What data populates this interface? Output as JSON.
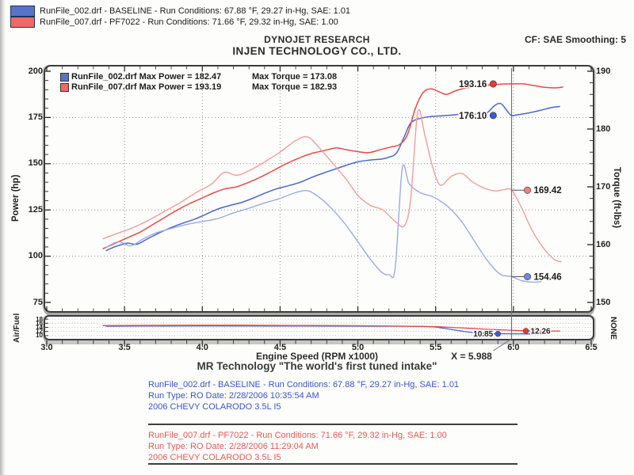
{
  "header": {
    "legend": [
      {
        "label": "RunFile_002.drf - BASELINE  -  Run Conditions: 67.88 °F, 29.27 in-Hg, SAE: 1.01",
        "color": "#5874c9"
      },
      {
        "label": "RunFile_007.drf - PF7022  -  Run Conditions: 71.66 °F, 29.32 in-Hg, SAE: 1.00",
        "color": "#ef6a66"
      }
    ],
    "company_line1": "DYNOJET RESEARCH",
    "company_line2": "INJEN TECHNOLOGY CO., LTD.",
    "cf_label": "CF: SAE  Smoothing: 5"
  },
  "chart_data": {
    "type": "line",
    "x_axis": {
      "label": "Engine Speed (RPM x1000)",
      "min": 3.0,
      "max": 6.5,
      "major_step": 0.5,
      "minor_step": 0.1,
      "ticks": [
        "3.0",
        "3.5",
        "4.0",
        "4.5",
        "5.0",
        "5.5",
        "6.0",
        "6.5"
      ]
    },
    "y_left": {
      "label": "Power (hp)",
      "min": 75,
      "max": 200,
      "major_step": 25,
      "minor_step": 5,
      "ticks": [
        "200",
        "175",
        "150",
        "125",
        "100",
        "75"
      ]
    },
    "y_right": {
      "label": "Torque (ft-lbs)",
      "min": 150,
      "max": 190,
      "major_step": 10,
      "minor_step": 2,
      "ticks": [
        "190",
        "180",
        "170",
        "160",
        "150"
      ]
    },
    "af_axis": {
      "label": "Air/Fuel",
      "right_label": "NONE",
      "min": 9.2,
      "max": 19.2,
      "ticks": [
        "18",
        "16",
        "14",
        "12",
        "10"
      ]
    },
    "grid": {
      "h_lines_power": [
        175,
        150,
        125,
        100
      ],
      "v_lines_rpm": [
        3.5,
        4.0,
        4.5,
        5.0,
        5.5,
        6.0
      ]
    },
    "cursor_x": 5.988,
    "cursor_label": "X = 5.988",
    "inner_legend": [
      {
        "file_power": "RunFile_002.drf Max Power = 182.47",
        "torque": "Max Torque = 173.08",
        "color": "#5874c9"
      },
      {
        "file_power": "RunFile_007.drf Max Power = 193.19",
        "torque": "Max Torque = 182.93",
        "color": "#ef6a66"
      }
    ],
    "series": [
      {
        "name": "power_002",
        "axis": "left",
        "color": "#4a66cc",
        "width": 1.5,
        "points": [
          [
            3.38,
            103
          ],
          [
            3.45,
            105.5
          ],
          [
            3.52,
            107
          ],
          [
            3.58,
            106.5
          ],
          [
            3.65,
            109.5
          ],
          [
            3.72,
            112.5
          ],
          [
            3.8,
            115.5
          ],
          [
            3.88,
            118
          ],
          [
            3.95,
            120
          ],
          [
            4.02,
            122.5
          ],
          [
            4.1,
            125.5
          ],
          [
            4.18,
            127.5
          ],
          [
            4.25,
            129
          ],
          [
            4.33,
            131.5
          ],
          [
            4.4,
            134
          ],
          [
            4.48,
            136.5
          ],
          [
            4.55,
            138
          ],
          [
            4.63,
            140
          ],
          [
            4.7,
            142.5
          ],
          [
            4.78,
            145
          ],
          [
            4.85,
            147
          ],
          [
            4.92,
            149
          ],
          [
            5.0,
            151
          ],
          [
            5.08,
            152
          ],
          [
            5.15,
            152.5
          ],
          [
            5.2,
            153.5
          ],
          [
            5.25,
            156
          ],
          [
            5.3,
            165
          ],
          [
            5.34,
            172
          ],
          [
            5.4,
            174.5
          ],
          [
            5.47,
            175.5
          ],
          [
            5.55,
            176
          ],
          [
            5.63,
            176.5
          ],
          [
            5.7,
            177.5
          ],
          [
            5.78,
            176.5
          ],
          [
            5.83,
            177.5
          ],
          [
            5.88,
            181.5
          ],
          [
            5.92,
            182.47
          ],
          [
            5.96,
            178.5
          ],
          [
            5.988,
            176.1
          ],
          [
            6.03,
            176.5
          ],
          [
            6.1,
            177.5
          ],
          [
            6.18,
            179
          ],
          [
            6.25,
            180.5
          ],
          [
            6.3,
            181
          ]
        ]
      },
      {
        "name": "power_007",
        "axis": "left",
        "color": "#e64a45",
        "width": 1.5,
        "points": [
          [
            3.36,
            104
          ],
          [
            3.44,
            107
          ],
          [
            3.52,
            110
          ],
          [
            3.6,
            113
          ],
          [
            3.68,
            117
          ],
          [
            3.76,
            121
          ],
          [
            3.84,
            125
          ],
          [
            3.92,
            128.5
          ],
          [
            4.0,
            131.5
          ],
          [
            4.08,
            134.5
          ],
          [
            4.15,
            136.5
          ],
          [
            4.22,
            137.5
          ],
          [
            4.3,
            140
          ],
          [
            4.38,
            143
          ],
          [
            4.46,
            146.5
          ],
          [
            4.54,
            150
          ],
          [
            4.62,
            153
          ],
          [
            4.7,
            155.5
          ],
          [
            4.78,
            157
          ],
          [
            4.86,
            158.5
          ],
          [
            4.93,
            157.5
          ],
          [
            5.0,
            156.5
          ],
          [
            5.07,
            156
          ],
          [
            5.14,
            157.5
          ],
          [
            5.21,
            159
          ],
          [
            5.27,
            160.5
          ],
          [
            5.32,
            166
          ],
          [
            5.37,
            180
          ],
          [
            5.42,
            188.5
          ],
          [
            5.47,
            190.5
          ],
          [
            5.52,
            189
          ],
          [
            5.57,
            187.5
          ],
          [
            5.63,
            189.5
          ],
          [
            5.7,
            191
          ],
          [
            5.78,
            192
          ],
          [
            5.86,
            192.7
          ],
          [
            5.94,
            193.1
          ],
          [
            5.988,
            193.16
          ],
          [
            6.06,
            193.19
          ],
          [
            6.13,
            192.3
          ],
          [
            6.2,
            191.3
          ],
          [
            6.27,
            191
          ],
          [
            6.32,
            191.5
          ]
        ]
      },
      {
        "name": "torque_002",
        "axis": "right",
        "color": "#9aabe4",
        "width": 1.4,
        "points": [
          [
            3.38,
            159.5
          ],
          [
            3.46,
            160.5
          ],
          [
            3.54,
            159.8
          ],
          [
            3.62,
            161
          ],
          [
            3.7,
            162
          ],
          [
            3.8,
            162.8
          ],
          [
            3.9,
            163.5
          ],
          [
            4.0,
            164
          ],
          [
            4.1,
            164.5
          ],
          [
            4.2,
            165.5
          ],
          [
            4.3,
            166.3
          ],
          [
            4.4,
            167.2
          ],
          [
            4.5,
            168
          ],
          [
            4.6,
            169
          ],
          [
            4.68,
            169.3
          ],
          [
            4.76,
            168
          ],
          [
            4.84,
            166
          ],
          [
            4.92,
            163.5
          ],
          [
            5.0,
            160.5
          ],
          [
            5.08,
            157.5
          ],
          [
            5.15,
            155.3
          ],
          [
            5.2,
            154.8
          ],
          [
            5.24,
            156
          ],
          [
            5.285,
            173.08
          ],
          [
            5.33,
            170.5
          ],
          [
            5.4,
            169
          ],
          [
            5.48,
            168.3
          ],
          [
            5.56,
            167
          ],
          [
            5.62,
            165.5
          ],
          [
            5.68,
            163.5
          ],
          [
            5.74,
            161
          ],
          [
            5.8,
            158.5
          ],
          [
            5.86,
            156.3
          ],
          [
            5.92,
            154.8
          ],
          [
            5.988,
            154.46
          ],
          [
            6.05,
            153.8
          ],
          [
            6.12,
            153.5
          ],
          [
            6.18,
            153.6
          ]
        ]
      },
      {
        "name": "torque_007",
        "axis": "right",
        "color": "#f29d99",
        "width": 1.4,
        "points": [
          [
            3.36,
            161
          ],
          [
            3.46,
            162
          ],
          [
            3.56,
            163
          ],
          [
            3.66,
            164.3
          ],
          [
            3.76,
            165.8
          ],
          [
            3.86,
            167.3
          ],
          [
            3.96,
            169
          ],
          [
            4.06,
            170.5
          ],
          [
            4.14,
            172.5
          ],
          [
            4.22,
            172
          ],
          [
            4.3,
            172.8
          ],
          [
            4.4,
            174.3
          ],
          [
            4.5,
            176
          ],
          [
            4.6,
            178
          ],
          [
            4.68,
            178.6
          ],
          [
            4.76,
            176.5
          ],
          [
            4.84,
            174
          ],
          [
            4.92,
            171.5
          ],
          [
            5.0,
            168.5
          ],
          [
            5.08,
            166.8
          ],
          [
            5.16,
            166
          ],
          [
            5.24,
            164
          ],
          [
            5.3,
            163.3
          ],
          [
            5.34,
            168
          ],
          [
            5.385,
            182.93
          ],
          [
            5.43,
            179
          ],
          [
            5.48,
            173.5
          ],
          [
            5.53,
            170.3
          ],
          [
            5.6,
            171.8
          ],
          [
            5.67,
            172.3
          ],
          [
            5.74,
            170.8
          ],
          [
            5.81,
            169.8
          ],
          [
            5.88,
            169.3
          ],
          [
            5.94,
            169.5
          ],
          [
            5.988,
            169.42
          ],
          [
            6.05,
            166.5
          ],
          [
            6.12,
            162.5
          ],
          [
            6.19,
            159.5
          ],
          [
            6.26,
            157.5
          ],
          [
            6.31,
            157
          ]
        ]
      }
    ],
    "af_series": [
      {
        "name": "af_002",
        "color": "#4a66cc",
        "width": 1.3,
        "points": [
          [
            3.38,
            14.55
          ],
          [
            3.7,
            14.65
          ],
          [
            4.1,
            14.7
          ],
          [
            4.5,
            14.65
          ],
          [
            4.9,
            14.6
          ],
          [
            5.2,
            14.55
          ],
          [
            5.45,
            14.4
          ],
          [
            5.55,
            13.6
          ],
          [
            5.65,
            12.4
          ],
          [
            5.75,
            11.4
          ],
          [
            5.85,
            11.0
          ],
          [
            5.95,
            10.9
          ],
          [
            6.05,
            10.85
          ],
          [
            6.15,
            10.8
          ]
        ]
      },
      {
        "name": "af_007",
        "color": "#e64a45",
        "width": 1.3,
        "points": [
          [
            3.36,
            14.85
          ],
          [
            3.8,
            15.0
          ],
          [
            4.2,
            15.05
          ],
          [
            4.6,
            14.95
          ],
          [
            5.0,
            14.8
          ],
          [
            5.3,
            14.6
          ],
          [
            5.5,
            14.3
          ],
          [
            5.65,
            13.8
          ],
          [
            5.8,
            13.2
          ],
          [
            5.95,
            12.7
          ],
          [
            6.05,
            12.4
          ],
          [
            6.15,
            12.26
          ],
          [
            6.3,
            12.2
          ]
        ]
      }
    ],
    "markers": [
      {
        "label": "193.16",
        "rpm": 5.87,
        "value": 193.16,
        "axis": "left",
        "side": "left",
        "color": "#e63a35",
        "leader": false
      },
      {
        "label": "176.10",
        "rpm": 5.87,
        "value": 176.1,
        "axis": "left",
        "side": "left",
        "color": "#3d5bd0",
        "leader": false
      },
      {
        "label": "169.42",
        "rpm": 6.09,
        "value": 169.42,
        "axis": "right",
        "side": "right",
        "color": "#ef807c",
        "leader": true
      },
      {
        "label": "154.46",
        "rpm": 6.09,
        "value": 154.46,
        "axis": "right",
        "side": "right",
        "color": "#6d87dc",
        "leader": true
      }
    ],
    "af_markers": [
      {
        "label": "10.85",
        "rpm": 5.9,
        "value": 10.85,
        "side": "left",
        "color": "#3d5bd0"
      },
      {
        "label": "12.26",
        "rpm": 6.08,
        "value": 12.26,
        "side": "right",
        "color": "#e63a35"
      }
    ]
  },
  "footer": {
    "tagline": "MR Technology \"The world's first tuned intake\"",
    "runs": [
      {
        "color": "#3a55c4",
        "lines": [
          "RunFile_002.drf - BASELINE  -  Run Conditions: 67.88 °F, 29.27 in-Hg, SAE: 1.01",
          "Run Type: RO  Date: 2/28/2006 10:35:54 AM",
          "2006 CHEVY COLARODO 3.5L I5"
        ]
      },
      {
        "color": "#e25a52",
        "lines": [
          "RunFile_007.drf - PF7022  -  Run Conditions: 71.66 °F, 29.32 in-Hg, SAE: 1.00",
          "Run Type: RO  Date: 2/28/2006 11:29:04 AM",
          "2006 CHEVY COLARODO 3.5L I5"
        ]
      }
    ]
  }
}
